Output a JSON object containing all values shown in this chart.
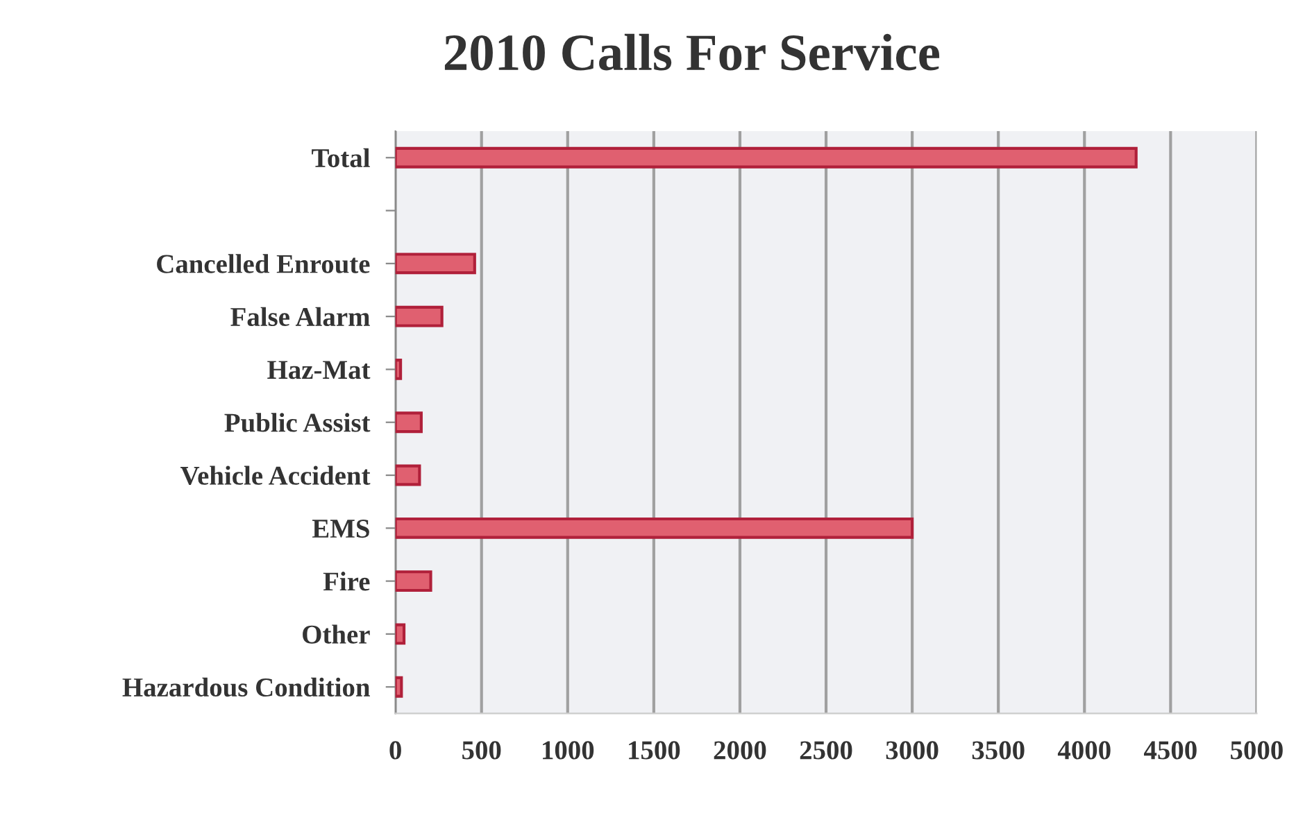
{
  "chart_data": {
    "type": "bar",
    "orientation": "horizontal",
    "title": "2010 Calls For Service",
    "categories": [
      "Total",
      null,
      "Cancelled Enroute",
      "False Alarm",
      "Haz-Mat",
      "Public Assist",
      "Vehicle Accident",
      "EMS",
      "Fire",
      "Other",
      "Hazardous Condition"
    ],
    "values": [
      4300,
      null,
      460,
      270,
      30,
      150,
      140,
      3000,
      205,
      50,
      35
    ],
    "color": "#e06070",
    "xlim": [
      0,
      5000
    ],
    "xticks": [
      0,
      500,
      1000,
      1500,
      2000,
      2500,
      3000,
      3500,
      4000,
      4500,
      5000
    ],
    "grid": "x"
  }
}
